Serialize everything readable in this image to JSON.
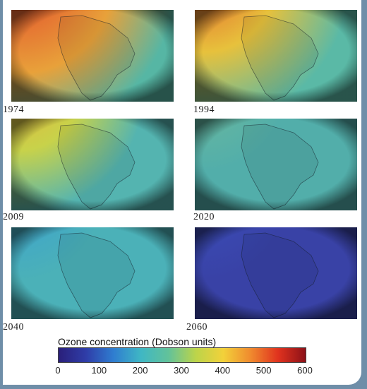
{
  "panels": [
    {
      "year": "1974",
      "hot": "#e2442a",
      "mid": "#e8a13a",
      "base": "#56b6a4",
      "hotSize": 0.45,
      "midSize": 0.75
    },
    {
      "year": "1994",
      "hot": "#e5602c",
      "mid": "#e7c13c",
      "base": "#5ab9a6",
      "hotSize": 0.35,
      "midSize": 0.7
    },
    {
      "year": "2009",
      "hot": "#e7b33a",
      "mid": "#c8d24a",
      "base": "#54b4b0",
      "hotSize": 0.3,
      "midSize": 0.6
    },
    {
      "year": "2020",
      "hot": "#5ab393",
      "mid": "#60b4a3",
      "base": "#52aeaa",
      "hotSize": 0.2,
      "midSize": 0.4
    },
    {
      "year": "2040",
      "hot": "#4dbab6",
      "mid": "#43a9c4",
      "base": "#4bb1b8",
      "hotSize": 0.2,
      "midSize": 0.4
    },
    {
      "year": "2060",
      "hot": "#3b46a8",
      "mid": "#3a48b0",
      "base": "#3942a6",
      "hotSize": 0.2,
      "midSize": 0.4
    }
  ],
  "legend": {
    "title": "Ozone concentration (Dobson units)",
    "ticks": [
      "0",
      "100",
      "200",
      "300",
      "400",
      "500",
      "600"
    ],
    "colors": [
      "#2a1f7a",
      "#2f3da8",
      "#2f7dd0",
      "#3fb7c4",
      "#62c29a",
      "#bcd44a",
      "#f2d13a",
      "#f08a2e",
      "#e0321e",
      "#8c1118"
    ]
  }
}
